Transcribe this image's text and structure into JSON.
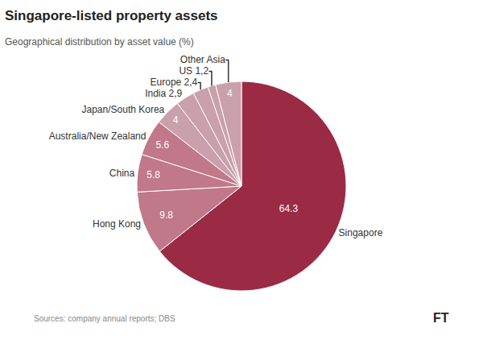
{
  "chart_data": {
    "type": "pie",
    "title": "Singapore-listed property assets",
    "subtitle": "Geographical distribution by asset value (%)",
    "annotations": [
      "Sources: company annual reports; DBS",
      "FT"
    ],
    "categories": [
      "Singapore",
      "Hong Kong",
      "China",
      "Australia/New Zealand",
      "Japan/South Korea",
      "India 2,9",
      "Europe 2,4",
      "US 1,2",
      "Other Asia"
    ],
    "values": [
      64.3,
      9.8,
      5.8,
      5.6,
      4.0,
      2.9,
      2.4,
      1.2,
      4.0
    ],
    "value_labels": [
      "64.3",
      "9.8",
      "5.8",
      "5.6",
      "4",
      null,
      null,
      null,
      "4"
    ],
    "data_labels": true,
    "colors": [
      "#9b2b45",
      "#c0788a",
      "#c0788a",
      "#c0788a",
      "#c9a0ac",
      "#c9a0ac",
      "#c9a0ac",
      "#c9a0ac",
      "#c9a0ac"
    ]
  }
}
